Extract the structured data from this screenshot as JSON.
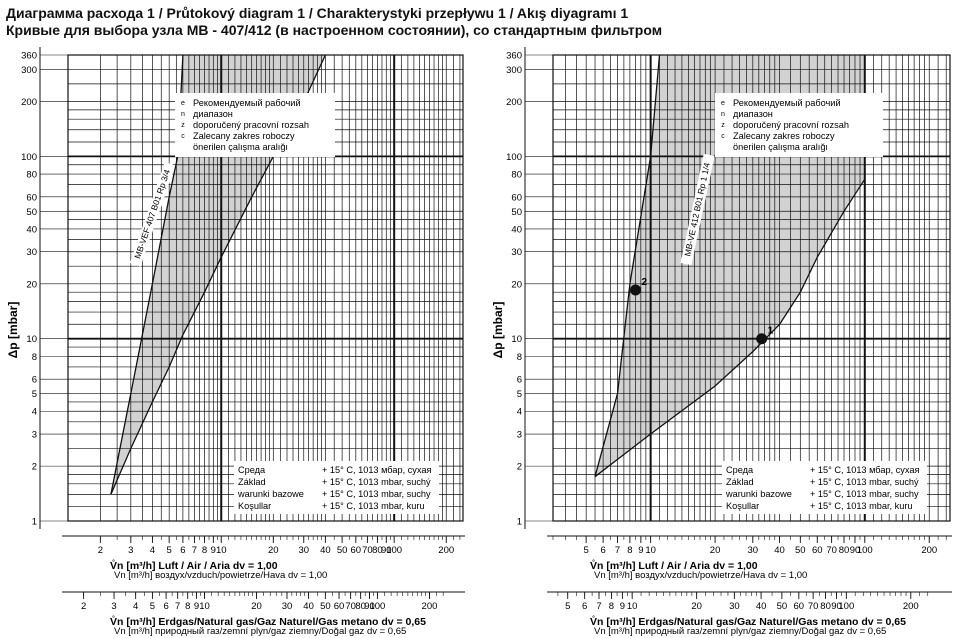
{
  "header": {
    "title": "Диаграмма расхода 1 / Průtokový diagram 1 / Charakterystyki przepływu 1 / Akış diyagramı 1",
    "subtitle": "Кривые для выбора узла MB - 407/412 (в настроенном состоянии), со стандартным фильтром"
  },
  "chart_data": [
    {
      "type": "area",
      "y_scale": "log",
      "x_scale": "log",
      "ylabel": "Δp [mbar]",
      "ylim": [
        1,
        360
      ],
      "y_ticks": [
        "1",
        "2",
        "3",
        "4",
        "5",
        "6",
        "8",
        "10",
        "20",
        "30",
        "40",
        "50",
        "60",
        "80",
        "100",
        "200",
        "300",
        "360"
      ],
      "x_axis_air": {
        "label_line1": "V̊n [m³/h] Luft / Air / Aria dv = 1,00",
        "label_line2": "Vn [m³/h] воздух/vzduch/powietrze/Hava dv = 1,00",
        "range": [
          1.3,
          250
        ],
        "ticks": [
          "2",
          "3",
          "4",
          "5",
          "6",
          "7",
          "8",
          "9",
          "10",
          "20",
          "30",
          "40",
          "50",
          "60",
          "70",
          "80",
          "90",
          "100",
          "200"
        ]
      },
      "x_axis_gas": {
        "label_line1": "V̊n [m³/h] Erdgas/Natural gas/Gaz Naturel/Gas metano dv = 0,65",
        "label_line2": "Vn [m³/h] природный газ/zemní plyn/gaz ziemny/Doğal gaz dv = 0,65",
        "ticks": [
          "2",
          "3",
          "4",
          "5",
          "6",
          "7",
          "8",
          "9",
          "10",
          "20",
          "30",
          "40",
          "50",
          "60",
          "70",
          "80",
          "90",
          "100",
          "200"
        ]
      },
      "curve_label": "MB-VEF 407 B01 Rp 3/4",
      "series": [
        {
          "name": "MB-VEF 407 B01 Rp 3/4",
          "points": [
            [
              2.3,
              1.4
            ],
            [
              3,
              2.5
            ],
            [
              4,
              4.5
            ],
            [
              5,
              7.0
            ],
            [
              6,
              10.5
            ],
            [
              8,
              18
            ],
            [
              10,
              28
            ],
            [
              15,
              60
            ],
            [
              20,
              100
            ],
            [
              30,
              200
            ],
            [
              40,
              360
            ]
          ]
        },
        {
          "name": "upper",
          "points": [
            [
              2.3,
              1.4
            ],
            [
              3,
              5
            ],
            [
              4,
              20
            ],
            [
              5,
              60
            ],
            [
              5.6,
              100
            ],
            [
              6,
              360
            ]
          ]
        }
      ],
      "legend": {
        "range_label_ru": "Рекомендуемый рабочий диапазон",
        "range_label_cs": "doporučený pracovní rozsah",
        "range_label_pl": "Zalecany zakres roboczy",
        "range_label_tr": "önerilen çalışma aralığı",
        "side_letters": [
          "e",
          "n",
          "z",
          "c"
        ]
      },
      "conditions": [
        [
          "Среда",
          "+ 15° C, 1013 мбар, сухая"
        ],
        [
          "Základ",
          "+ 15° C, 1013 mbar, suchý"
        ],
        [
          "warunki bazowe",
          "+ 15° C, 1013 mbar, suchy"
        ],
        [
          "Koşullar",
          "+ 15° C, 1013 mbar, kuru"
        ]
      ]
    },
    {
      "type": "area",
      "y_scale": "log",
      "x_scale": "log",
      "ylabel": "Δp [mbar]",
      "ylim": [
        1,
        360
      ],
      "y_ticks": [
        "1",
        "2",
        "3",
        "4",
        "5",
        "6",
        "8",
        "10",
        "20",
        "30",
        "40",
        "50",
        "60",
        "80",
        "100",
        "200",
        "300",
        "360"
      ],
      "x_axis_air": {
        "label_line1": "V̊n [m³/h] Luft / Air / Aria dv = 1,00",
        "label_line2": "Vn [m³/h] воздух/vzduch/powietrze/Hava dv = 1,00",
        "range": [
          3.5,
          250
        ],
        "ticks": [
          "5",
          "6",
          "7",
          "8",
          "9",
          "10",
          "20",
          "30",
          "40",
          "50",
          "60",
          "70",
          "80",
          "90",
          "100",
          "200"
        ]
      },
      "x_axis_gas": {
        "label_line1": "V̊n [m³/h] Erdgas/Natural gas/Gaz Naturel/Gas metano dv = 0,65",
        "label_line2": "Vn [m³/h] природный газ/zemní plyn/gaz ziemny/Doğal gaz dv = 0,65",
        "ticks": [
          "5",
          "6",
          "7",
          "8",
          "9",
          "10",
          "20",
          "30",
          "40",
          "50",
          "60",
          "70",
          "80",
          "90",
          "100",
          "200"
        ]
      },
      "curve_label": "MB-VE 412 B01 Rp 1 1/4",
      "series": [
        {
          "name": "MB-VE 412 B01 Rp 1 1/4",
          "points": [
            [
              5.5,
              1.75
            ],
            [
              10,
              3
            ],
            [
              20,
              5.5
            ],
            [
              30,
              8.5
            ],
            [
              40,
              12
            ],
            [
              50,
              18
            ],
            [
              60,
              28
            ],
            [
              80,
              50
            ],
            [
              100,
              75
            ]
          ]
        },
        {
          "name": "upper",
          "points": [
            [
              5.5,
              1.75
            ],
            [
              7,
              5
            ],
            [
              8,
              20
            ],
            [
              10,
              100
            ],
            [
              11,
              360
            ]
          ]
        }
      ],
      "markers": [
        {
          "label": "1",
          "x": 33,
          "y": 10
        },
        {
          "label": "2",
          "x": 8.5,
          "y": 18.5
        }
      ],
      "legend": {
        "range_label_ru": "Рекомендуемый рабочий диапазон",
        "range_label_cs": "doporučený pracovní rozsah",
        "range_label_pl": "Zalecany zakres roboczy",
        "range_label_tr": "önerilen çalışma aralığı",
        "side_letters": [
          "e",
          "n",
          "z",
          "c"
        ]
      },
      "conditions": [
        [
          "Среда",
          "+ 15° C, 1013 мбар, сухая"
        ],
        [
          "Základ",
          "+ 15° C, 1013 mbar, suchý"
        ],
        [
          "warunki bazowe",
          "+ 15° C, 1013 mbar, suchy"
        ],
        [
          "Koşullar",
          "+ 15° C, 1013 mbar, kuru"
        ]
      ]
    }
  ],
  "colors": {
    "grid": "#111111",
    "area": "#d2d2d2",
    "text": "#111111",
    "background": "#ffffff"
  }
}
